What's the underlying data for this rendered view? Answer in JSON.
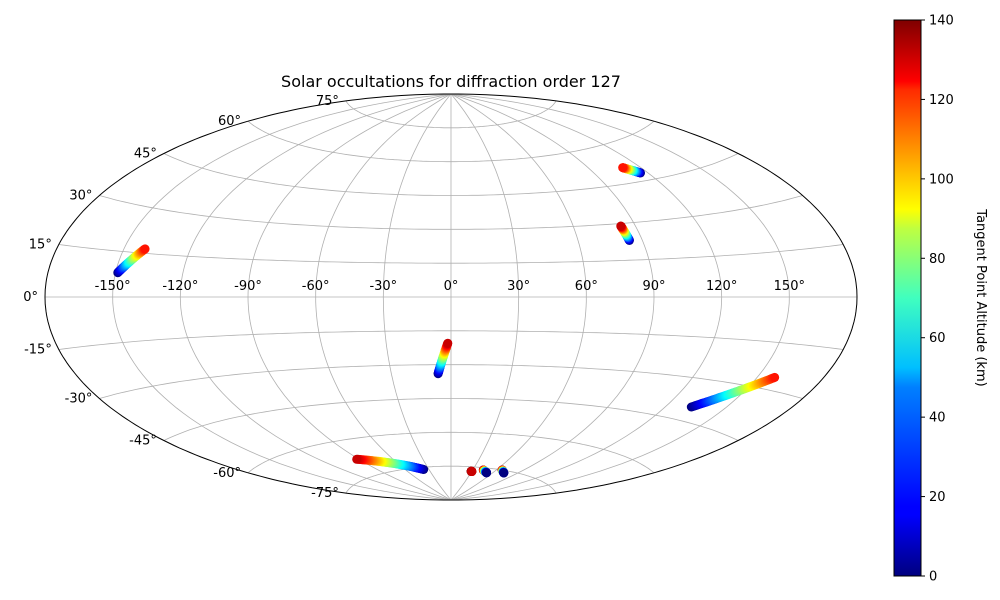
{
  "chart_data": {
    "type": "scatter",
    "projection": "aitoff",
    "title": "Solar occultations for diffraction order 127",
    "xlabel": "",
    "ylabel": "",
    "x_unit": "longitude (deg)",
    "y_unit": "latitude (deg)",
    "xlim": [
      -180,
      180
    ],
    "ylim": [
      -90,
      90
    ],
    "grid": true,
    "lon_ticks": [
      -150,
      -120,
      -90,
      -60,
      -30,
      0,
      30,
      60,
      90,
      120,
      150
    ],
    "lat_ticks": [
      -75,
      -60,
      -45,
      -30,
      -15,
      0,
      15,
      30,
      45,
      60,
      75
    ],
    "lon_tick_labels": [
      "-150°",
      "-120°",
      "-90°",
      "-60°",
      "-30°",
      "0°",
      "30°",
      "60°",
      "90°",
      "120°",
      "150°"
    ],
    "lat_tick_labels": [
      "-75°",
      "-60°",
      "-45°",
      "-30°",
      "-15°",
      "0°",
      "15°",
      "30°",
      "45°",
      "60°",
      "75°"
    ],
    "colorbar": {
      "label": "Tangent Point Altitude (km)",
      "colormap": "jet",
      "range": [
        0,
        140
      ],
      "ticks": [
        0,
        20,
        40,
        60,
        80,
        100,
        120,
        140
      ],
      "tick_labels": [
        "0",
        "20",
        "40",
        "60",
        "80",
        "100",
        "120",
        "140"
      ]
    },
    "tracks": [
      {
        "start": {
          "lon": -149,
          "lat": 8,
          "alt": 0
        },
        "end": {
          "lon": -140.5,
          "lat": 16.5,
          "alt": 120
        }
      },
      {
        "start": {
          "lon": 116,
          "lat": 48,
          "alt": 0
        },
        "end": {
          "lon": 110,
          "lat": 51,
          "alt": 120
        }
      },
      {
        "start": {
          "lon": 84,
          "lat": 23,
          "alt": 0
        },
        "end": {
          "lon": 83,
          "lat": 29,
          "alt": 130
        }
      },
      {
        "start": {
          "lon": -6.5,
          "lat": -34,
          "alt": 0
        },
        "end": {
          "lon": -1.5,
          "lat": -20.5,
          "alt": 130
        }
      },
      {
        "start": {
          "lon": 133,
          "lat": -40,
          "alt": 0
        },
        "end": {
          "lon": 158,
          "lat": -26,
          "alt": 120
        }
      },
      {
        "start": {
          "lon": -37,
          "lat": -76,
          "alt": 0
        },
        "end": {
          "lon": -92,
          "lat": -68,
          "alt": 130
        }
      },
      {
        "start": {
          "lon": 29,
          "lat": -77,
          "alt": 140
        },
        "end": {
          "lon": 30,
          "lat": -77,
          "alt": 130
        }
      },
      {
        "start": {
          "lon": 44,
          "lat": -76,
          "alt": 140
        },
        "end": {
          "lon": 52,
          "lat": -77,
          "alt": 0
        }
      },
      {
        "start": {
          "lon": 67,
          "lat": -75,
          "alt": 140
        },
        "end": {
          "lon": 74,
          "lat": -76,
          "alt": 0
        }
      }
    ]
  }
}
